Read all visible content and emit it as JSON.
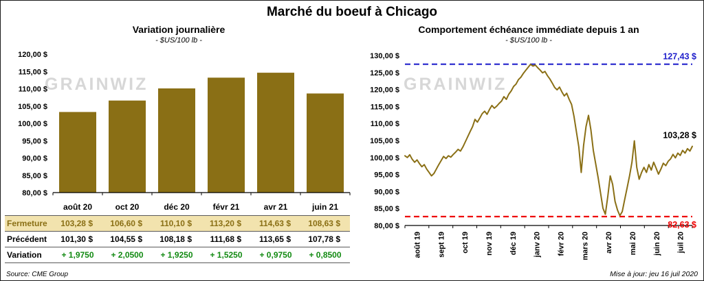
{
  "page": {
    "title": "Marché du boeuf à Chicago",
    "source": "Source: CME Group",
    "updated": "Mise à jour: jeu 16 juil 2020",
    "watermark": "GRAINWIZ"
  },
  "left_table": {
    "columns": [
      "août 20",
      "oct 20",
      "déc 20",
      "févr 21",
      "avr 21",
      "juin 21"
    ],
    "rows": [
      {
        "label": "Fermeture",
        "values": [
          "103,28 $",
          "106,60 $",
          "110,10 $",
          "113,20 $",
          "114,63 $",
          "108,63 $"
        ]
      },
      {
        "label": "Précédent",
        "values": [
          "101,30 $",
          "104,55 $",
          "108,18 $",
          "111,68 $",
          "113,65 $",
          "107,78 $"
        ]
      },
      {
        "label": "Variation",
        "values": [
          "+ 1,9750",
          "+ 2,0500",
          "+ 1,9250",
          "+ 1,5250",
          "+ 0,9750",
          "+ 0,8500"
        ]
      }
    ]
  },
  "chart_data": [
    {
      "type": "bar",
      "title": "Variation journalière",
      "subtitle": "- $US/100 lb -",
      "categories": [
        "août 20",
        "oct 20",
        "déc 20",
        "févr 21",
        "avr 21",
        "juin 21"
      ],
      "values": [
        103.28,
        106.6,
        110.1,
        113.2,
        114.63,
        108.63
      ],
      "xlabel": "",
      "ylabel": "",
      "ylim": [
        80,
        120
      ],
      "ytick_step": 5,
      "grid": false,
      "bar_color": "#8a6f15"
    },
    {
      "type": "line",
      "title": "Comportement échéance immédiate depuis 1 an",
      "subtitle": "- $US/100 lb -",
      "x_labels": [
        "août 19",
        "sept 19",
        "oct 19",
        "nov 19",
        "déc 19",
        "janv 20",
        "févr 20",
        "mars 20",
        "avr 20",
        "mai 20",
        "juin 20",
        "juil 20"
      ],
      "xlabel": "",
      "ylabel": "",
      "ylim": [
        80,
        130
      ],
      "ytick_step": 5,
      "grid": false,
      "line_color": "#8a6f15",
      "reference_lines": [
        {
          "name": "max",
          "value": 127.43,
          "label": "127,43 $",
          "color": "#2222cc",
          "style": "dashed"
        },
        {
          "name": "min",
          "value": 82.63,
          "label": "82,63 $",
          "color": "#ee0000",
          "style": "dashed"
        }
      ],
      "last_value": 103.28,
      "last_value_label": "103,28 $",
      "values": [
        100.5,
        100.0,
        100.8,
        99.5,
        98.6,
        99.3,
        98.2,
        97.3,
        97.9,
        96.6,
        95.6,
        94.6,
        95.3,
        96.6,
        97.9,
        99.1,
        100.3,
        99.7,
        100.5,
        100.1,
        100.9,
        101.6,
        102.4,
        101.9,
        103.1,
        104.6,
        106.1,
        107.6,
        109.1,
        111.2,
        110.4,
        111.6,
        112.9,
        113.6,
        112.7,
        114.1,
        115.3,
        114.5,
        115.1,
        115.9,
        116.6,
        117.9,
        117.1,
        118.6,
        119.6,
        120.9,
        121.6,
        122.9,
        123.6,
        124.7,
        125.6,
        126.5,
        127.4,
        126.9,
        127.2,
        126.4,
        125.7,
        124.9,
        125.3,
        124.1,
        123.1,
        121.9,
        120.6,
        119.9,
        120.7,
        119.3,
        118.1,
        118.9,
        117.1,
        115.6,
        112.1,
        107.6,
        103.1,
        95.6,
        103.6,
        109.1,
        112.4,
        108.1,
        102.1,
        98.1,
        94.1,
        89.6,
        85.1,
        83.3,
        88.6,
        94.6,
        92.1,
        87.1,
        84.6,
        82.9,
        84.1,
        87.6,
        91.1,
        94.6,
        98.6,
        104.9,
        97.1,
        93.6,
        95.6,
        97.1,
        95.6,
        97.9,
        96.3,
        98.6,
        96.9,
        95.1,
        96.6,
        98.3,
        97.6,
        98.9,
        99.6,
        100.9,
        99.9,
        101.3,
        100.6,
        102.1,
        101.3,
        102.6,
        101.9,
        103.28
      ]
    }
  ]
}
